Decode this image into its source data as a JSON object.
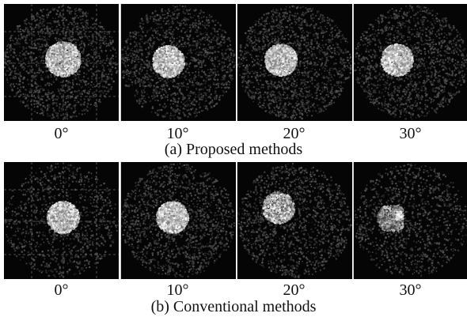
{
  "figure": {
    "row_a": {
      "caption": "(a) Proposed methods",
      "panels": [
        {
          "angle": "0°",
          "spot": "round",
          "halo": 0.22,
          "grid": true
        },
        {
          "angle": "10°",
          "spot": "round",
          "halo": 0.22,
          "grid": false
        },
        {
          "angle": "20°",
          "spot": "round",
          "halo": 0.24,
          "grid": false
        },
        {
          "angle": "30°",
          "spot": "round",
          "halo": 0.22,
          "grid": false
        }
      ]
    },
    "row_b": {
      "caption": "(b) Conventional methods",
      "panels": [
        {
          "angle": "0°",
          "spot": "round",
          "halo": 0.14,
          "grid": true
        },
        {
          "angle": "10°",
          "spot": "round",
          "halo": 0.22,
          "grid": false
        },
        {
          "angle": "20°",
          "spot": "dim",
          "halo": 0.2,
          "grid": false
        },
        {
          "angle": "30°",
          "spot": "fragmented",
          "halo": 0.16,
          "grid": false
        }
      ]
    }
  }
}
